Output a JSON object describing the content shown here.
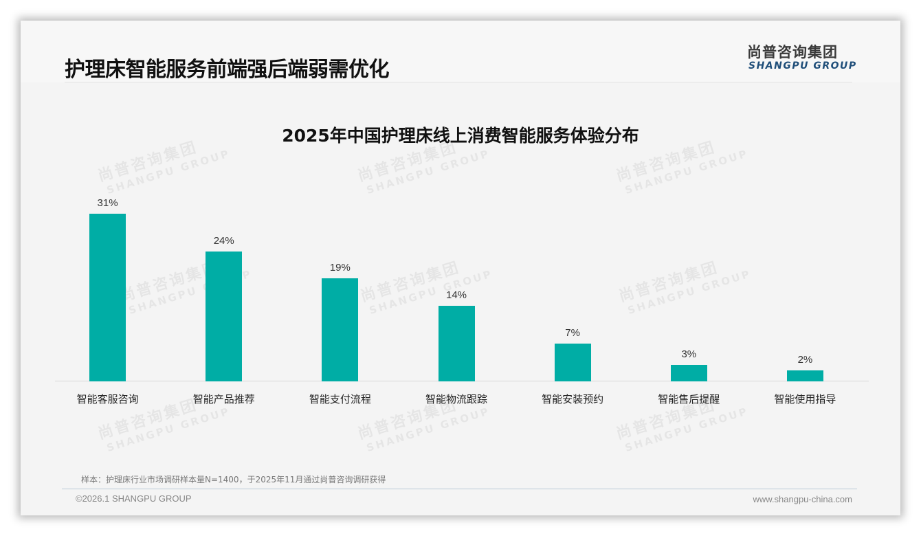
{
  "header": {
    "title": "护理床智能服务前端强后端弱需优化",
    "logo_cn": "尚普咨询集团",
    "logo_en": "SHANGPU GROUP"
  },
  "watermark": {
    "cn": "尚普咨询集团",
    "en": "SHANGPU GROUP"
  },
  "colors": {
    "bar": "#00ADA5",
    "title": "#111111",
    "logo_en": "#1F4E79"
  },
  "chart_data": {
    "type": "bar",
    "title": "2025年中国护理床线上消费智能服务体验分布",
    "categories": [
      "智能客服咨询",
      "智能产品推荐",
      "智能支付流程",
      "智能物流跟踪",
      "智能安装预约",
      "智能售后提醒",
      "智能使用指导"
    ],
    "values": [
      31,
      24,
      19,
      14,
      7,
      3,
      2
    ],
    "value_labels": [
      "31%",
      "24%",
      "19%",
      "14%",
      "7%",
      "3%",
      "2%"
    ],
    "unit": "%",
    "xlabel": "",
    "ylabel": "",
    "ylim": [
      0,
      31
    ],
    "grid": false,
    "legend": null,
    "data_labels": true
  },
  "footer": {
    "note": "样本：护理床行业市场调研样本量N=1400，于2025年11月通过尚普咨询调研获得",
    "copyright": "©2026.1 SHANGPU GROUP",
    "website": "www.shangpu-china.com"
  }
}
